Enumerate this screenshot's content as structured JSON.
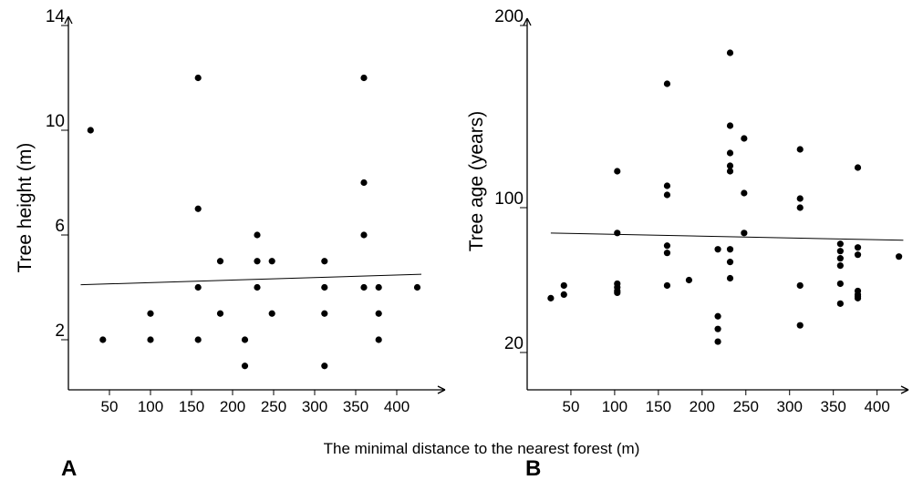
{
  "figure": {
    "shared_xlabel": "The minimal distance to the nearest forest (m)"
  },
  "chart_data": [
    {
      "type": "scatter",
      "panel_label": "A",
      "xlabel": "",
      "ylabel": "Tree height (m)",
      "xlim": [
        0,
        440
      ],
      "ylim": [
        0,
        14
      ],
      "xticks": [
        50,
        100,
        150,
        200,
        250,
        300,
        350,
        400
      ],
      "yticks": [
        2,
        6,
        10,
        14
      ],
      "grid": false,
      "legend": "none",
      "points": [
        [
          27,
          10
        ],
        [
          42,
          2
        ],
        [
          100,
          3
        ],
        [
          100,
          2
        ],
        [
          158,
          12
        ],
        [
          158,
          7
        ],
        [
          158,
          4
        ],
        [
          158,
          2
        ],
        [
          185,
          5
        ],
        [
          185,
          3
        ],
        [
          215,
          2
        ],
        [
          215,
          1
        ],
        [
          230,
          6
        ],
        [
          230,
          5
        ],
        [
          230,
          4
        ],
        [
          248,
          5
        ],
        [
          248,
          3
        ],
        [
          312,
          5
        ],
        [
          312,
          4
        ],
        [
          312,
          3
        ],
        [
          312,
          1
        ],
        [
          360,
          12
        ],
        [
          360,
          8
        ],
        [
          360,
          6
        ],
        [
          360,
          4
        ],
        [
          378,
          4
        ],
        [
          378,
          3
        ],
        [
          378,
          2
        ],
        [
          425,
          4
        ]
      ],
      "trend_line": [
        [
          15,
          4.1
        ],
        [
          430,
          4.5
        ]
      ]
    },
    {
      "type": "scatter",
      "panel_label": "B",
      "xlabel": "",
      "ylabel": "Tree age (years)",
      "xlim": [
        0,
        440
      ],
      "ylim": [
        0,
        200
      ],
      "xticks": [
        50,
        100,
        150,
        200,
        250,
        300,
        350,
        400
      ],
      "yticks": [
        20,
        100,
        200
      ],
      "grid": false,
      "legend": "none",
      "points": [
        [
          27,
          50
        ],
        [
          42,
          52
        ],
        [
          42,
          57
        ],
        [
          103,
          58
        ],
        [
          103,
          56
        ],
        [
          103,
          54
        ],
        [
          103,
          53
        ],
        [
          103,
          86
        ],
        [
          103,
          120
        ],
        [
          160,
          168
        ],
        [
          160,
          112
        ],
        [
          160,
          107
        ],
        [
          160,
          79
        ],
        [
          160,
          75
        ],
        [
          160,
          57
        ],
        [
          185,
          60
        ],
        [
          218,
          77
        ],
        [
          218,
          40
        ],
        [
          218,
          33
        ],
        [
          218,
          26
        ],
        [
          232,
          185
        ],
        [
          232,
          145
        ],
        [
          232,
          130
        ],
        [
          232,
          123
        ],
        [
          232,
          120
        ],
        [
          232,
          77
        ],
        [
          232,
          70
        ],
        [
          232,
          61
        ],
        [
          248,
          108
        ],
        [
          248,
          138
        ],
        [
          248,
          86
        ],
        [
          312,
          132
        ],
        [
          312,
          105
        ],
        [
          312,
          100
        ],
        [
          312,
          57
        ],
        [
          312,
          35
        ],
        [
          358,
          80
        ],
        [
          358,
          76
        ],
        [
          358,
          72
        ],
        [
          358,
          68
        ],
        [
          358,
          58
        ],
        [
          358,
          47
        ],
        [
          378,
          122
        ],
        [
          378,
          78
        ],
        [
          378,
          74
        ],
        [
          378,
          54
        ],
        [
          378,
          52
        ],
        [
          378,
          50
        ],
        [
          378,
          51
        ],
        [
          425,
          73
        ]
      ],
      "trend_line": [
        [
          27,
          86
        ],
        [
          430,
          82
        ]
      ]
    }
  ]
}
